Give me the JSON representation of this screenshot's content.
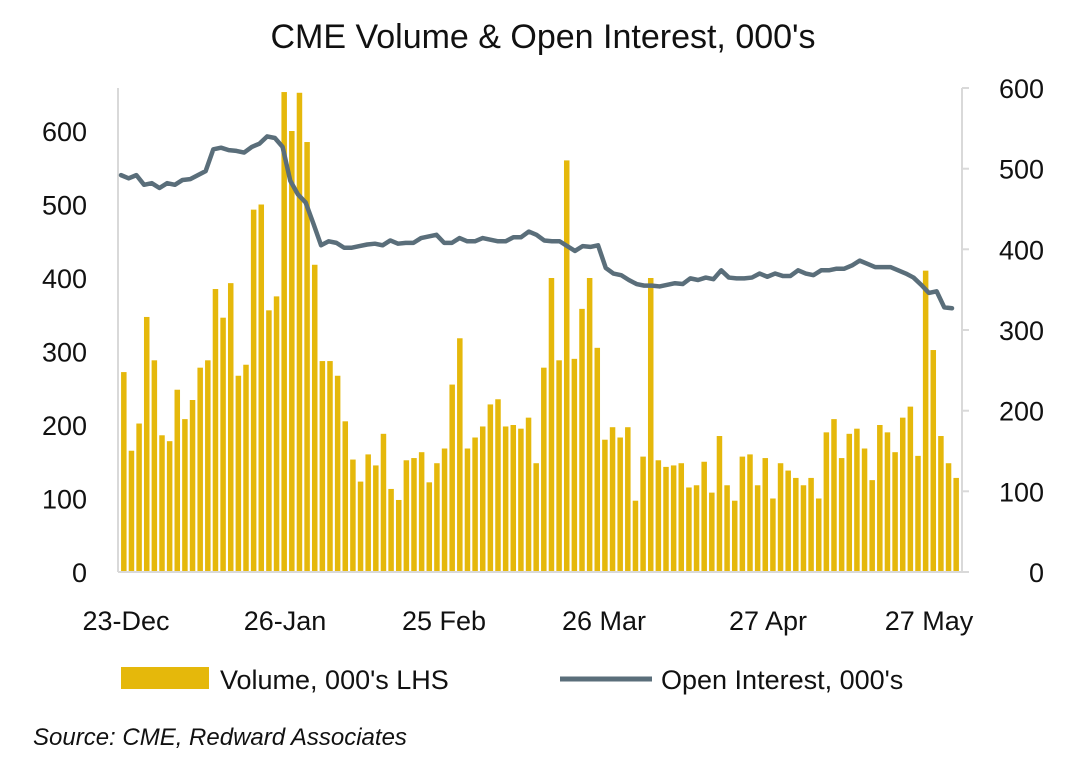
{
  "chart_data": {
    "type": "bar",
    "title": "CME Volume & Open Interest, 000's",
    "source": "Source: CME, Redward Associates",
    "x_tick_labels": [
      "23-Dec",
      "26-Jan",
      "25 Feb",
      "26 Mar",
      "27 Apr",
      "27 May"
    ],
    "left_axis": {
      "ylim": [
        0,
        660
      ],
      "ticks": [
        0,
        100,
        200,
        300,
        400,
        500,
        600
      ]
    },
    "right_axis": {
      "ylim": [
        0,
        600
      ],
      "ticks": [
        0,
        100,
        200,
        300,
        400,
        500,
        600
      ]
    },
    "grid": false,
    "legend_position": "bottom",
    "series": [
      {
        "name": "Volume, 000's LHS",
        "type": "bar",
        "axis": "left",
        "color": "#E5B80B",
        "values": [
          272,
          165,
          202,
          347,
          288,
          186,
          178,
          248,
          208,
          234,
          278,
          288,
          385,
          346,
          393,
          267,
          282,
          493,
          500,
          356,
          375,
          653,
          600,
          652,
          585,
          418,
          287,
          287,
          267,
          205,
          153,
          123,
          160,
          145,
          188,
          113,
          98,
          152,
          155,
          163,
          122,
          148,
          168,
          255,
          318,
          168,
          183,
          198,
          228,
          235,
          198,
          200,
          195,
          210,
          148,
          278,
          400,
          288,
          560,
          290,
          358,
          400,
          305,
          180,
          197,
          183,
          197,
          97,
          157,
          400,
          152,
          143,
          145,
          148,
          115,
          118,
          150,
          108,
          185,
          118,
          97,
          157,
          160,
          118,
          155,
          100,
          148,
          138,
          128,
          118,
          128,
          100,
          190,
          208,
          155,
          188,
          195,
          168,
          125,
          200,
          190,
          163,
          210,
          225,
          158,
          410,
          302,
          185,
          148,
          128
        ]
      },
      {
        "name": "Open Interest, 000's",
        "type": "line",
        "axis": "right",
        "color": "#5A6E7A",
        "values": [
          492,
          488,
          492,
          480,
          482,
          476,
          482,
          480,
          486,
          487,
          492,
          497,
          524,
          526,
          523,
          522,
          520,
          527,
          531,
          540,
          538,
          527,
          485,
          468,
          458,
          432,
          405,
          410,
          408,
          402,
          402,
          404,
          406,
          407,
          405,
          411,
          407,
          408,
          408,
          414,
          416,
          418,
          408,
          408,
          414,
          410,
          410,
          414,
          412,
          410,
          410,
          415,
          415,
          422,
          418,
          411,
          410,
          410,
          404,
          398,
          404,
          403,
          405,
          377,
          370,
          368,
          362,
          357,
          355,
          355,
          354,
          356,
          358,
          357,
          364,
          362,
          365,
          363,
          374,
          365,
          364,
          364,
          365,
          370,
          366,
          370,
          367,
          367,
          374,
          370,
          368,
          374,
          374,
          376,
          376,
          380,
          386,
          382,
          378,
          378,
          378,
          374,
          370,
          365,
          356,
          346,
          348,
          328,
          327
        ]
      }
    ]
  }
}
